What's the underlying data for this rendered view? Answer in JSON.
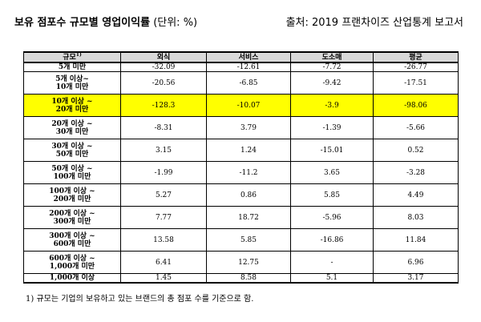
{
  "header": {
    "title_bold": "보유 점포수 규모별 영업이익률",
    "title_unit": " (단위: %)",
    "source": "출처: 2019 프랜차이즈 산업통계 보고서"
  },
  "table": {
    "columns": [
      "규모",
      "외식",
      "서비스",
      "도소매",
      "평균"
    ],
    "column_superscript": "1)",
    "rows": [
      {
        "scale": [
          "5개 미만"
        ],
        "values": [
          "-32.09",
          "-12.61",
          "-7.72",
          "-26.77"
        ]
      },
      {
        "scale": [
          "5개 이상~",
          "10개 미만"
        ],
        "values": [
          "-20.56",
          "-6.85",
          "-9.42",
          "-17.51"
        ]
      },
      {
        "scale": [
          "10개 이상 ~",
          "20개 미만"
        ],
        "values": [
          "-128.3",
          "-10.07",
          "-3.9",
          "-98.06"
        ],
        "highlight": true
      },
      {
        "scale": [
          "20개 이상 ~",
          "30개 미만"
        ],
        "values": [
          "-8.31",
          "3.79",
          "-1.39",
          "-5.66"
        ]
      },
      {
        "scale": [
          "30개 이상 ~",
          "50개 미만"
        ],
        "values": [
          "3.15",
          "1.24",
          "-15.01",
          "0.52"
        ]
      },
      {
        "scale": [
          "50개 이상 ~",
          "100개 미만"
        ],
        "values": [
          "-1.99",
          "-11.2",
          "3.65",
          "-3.28"
        ]
      },
      {
        "scale": [
          "100개 이상 ~",
          "200개 미만"
        ],
        "values": [
          "5.27",
          "0.86",
          "5.85",
          "4.49"
        ]
      },
      {
        "scale": [
          "200개 이상 ~",
          "300개 미만"
        ],
        "values": [
          "7.77",
          "18.72",
          "-5.96",
          "8.03"
        ]
      },
      {
        "scale": [
          "300개 이상 ~",
          "600개 미만"
        ],
        "values": [
          "13.58",
          "5.85",
          "-16.86",
          "11.84"
        ]
      },
      {
        "scale": [
          "600개 이상 ~",
          "1,000개 미만"
        ],
        "values": [
          "6.41",
          "12.75",
          "-",
          "6.96"
        ]
      },
      {
        "scale": [
          "1,000개 이상"
        ],
        "values": [
          "1.45",
          "8.58",
          "5.1",
          "3.17"
        ]
      }
    ]
  },
  "footnote": "1) 규모는 기업의 보유하고 있는 브랜드의 총 점포 수를 기준으로 함.",
  "colors": {
    "highlight": "#ffff00",
    "header_bg": "#d9d9d9"
  }
}
